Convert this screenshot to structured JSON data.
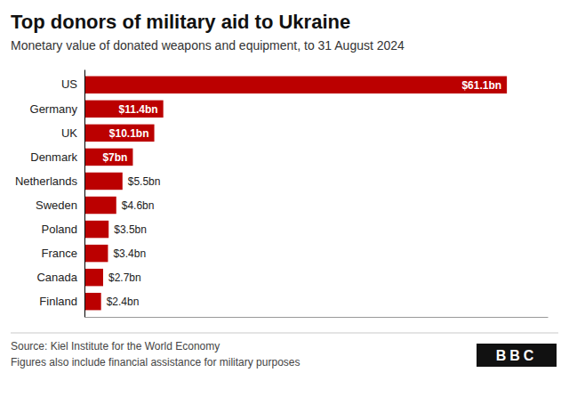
{
  "chart_data": {
    "type": "bar",
    "orientation": "horizontal",
    "title": "Top donors of military aid to Ukraine",
    "subtitle": "Monetary value of donated weapons and equipment, to 31 August 2024",
    "categories": [
      "US",
      "Germany",
      "UK",
      "Denmark",
      "Netherlands",
      "Sweden",
      "Poland",
      "France",
      "Canada",
      "Finland"
    ],
    "values": [
      61.1,
      11.4,
      10.1,
      7.0,
      5.5,
      4.6,
      3.5,
      3.4,
      2.7,
      2.4
    ],
    "value_labels": [
      "$61.1bn",
      "$11.4bn",
      "$10.1bn",
      "$7bn",
      "$5.5bn",
      "$4.6bn",
      "$3.5bn",
      "$3.4bn",
      "$2.7bn",
      "$2.4bn"
    ],
    "data_labels": true,
    "color": "#BB0000",
    "xlim": [
      0,
      67
    ],
    "tick_labels": "y",
    "grid": false,
    "annotations": [
      "Source: Kiel Institute for the World Economy",
      "Figures also include financial assistance for military purposes",
      "BBC"
    ]
  }
}
